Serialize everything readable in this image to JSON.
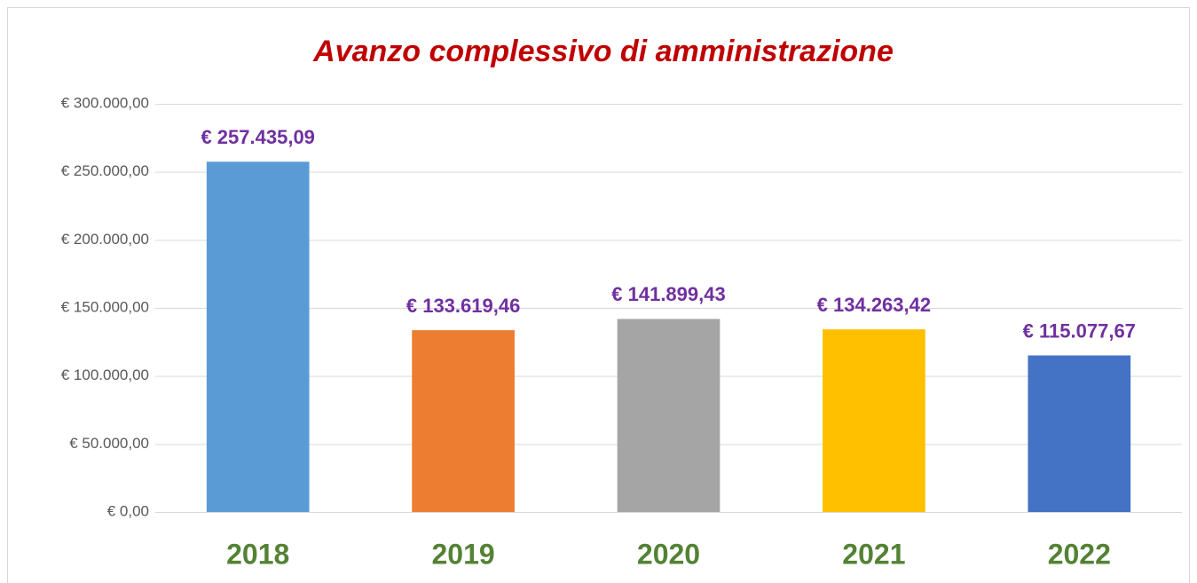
{
  "chart_data": {
    "type": "bar",
    "title": "Avanzo complessivo di amministrazione",
    "categories": [
      "2018",
      "2019",
      "2020",
      "2021",
      "2022"
    ],
    "values": [
      257435.09,
      133619.46,
      141899.43,
      134263.42,
      115077.67
    ],
    "value_labels": [
      "€ 257.435,09",
      "€ 133.619,46",
      "€ 141.899,43",
      "€ 134.263,42",
      "€ 115.077,67"
    ],
    "colors": [
      "#5b9bd5",
      "#ed7d31",
      "#a5a5a5",
      "#ffc000",
      "#4472c4"
    ],
    "ylim": [
      0,
      300000
    ],
    "yticks": [
      {
        "value": 0,
        "label": "€ 0,00"
      },
      {
        "value": 50000,
        "label": "€ 50.000,00"
      },
      {
        "value": 100000,
        "label": "€ 100.000,00"
      },
      {
        "value": 150000,
        "label": "€ 150.000,00"
      },
      {
        "value": 200000,
        "label": "€ 200.000,00"
      },
      {
        "value": 250000,
        "label": "€ 250.000,00"
      },
      {
        "value": 300000,
        "label": "€ 300.000,00"
      }
    ],
    "grid": true
  }
}
